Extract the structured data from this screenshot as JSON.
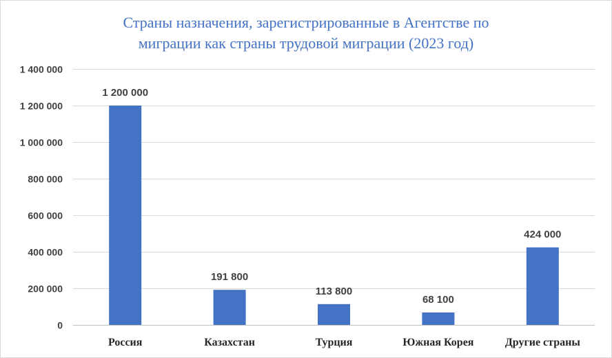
{
  "chart_data": {
    "type": "bar",
    "title_lines": [
      "Страны назначения, зарегистрированные в Агентстве по",
      "миграции как страны трудовой миграции (2023 год)"
    ],
    "categories": [
      "Россия",
      "Казахстан",
      "Турция",
      "Южная Корея",
      "Другие страны"
    ],
    "values": [
      1200000,
      191800,
      113800,
      68100,
      424000
    ],
    "data_labels": [
      "1 200 000",
      "191 800",
      "113 800",
      "68 100",
      "424 000"
    ],
    "y_ticks": [
      0,
      200000,
      400000,
      600000,
      800000,
      1000000,
      1200000,
      1400000
    ],
    "y_tick_labels": [
      "0",
      "200 000",
      "400 000",
      "600 000",
      "800 000",
      "1 000 000",
      "1 200 000",
      "1 400 000"
    ],
    "ylim": [
      0,
      1400000
    ],
    "grid": true,
    "legend": "none",
    "bar_color": "#4472c4",
    "grid_color": "#d9d9d9",
    "xlabel": "",
    "ylabel": ""
  }
}
